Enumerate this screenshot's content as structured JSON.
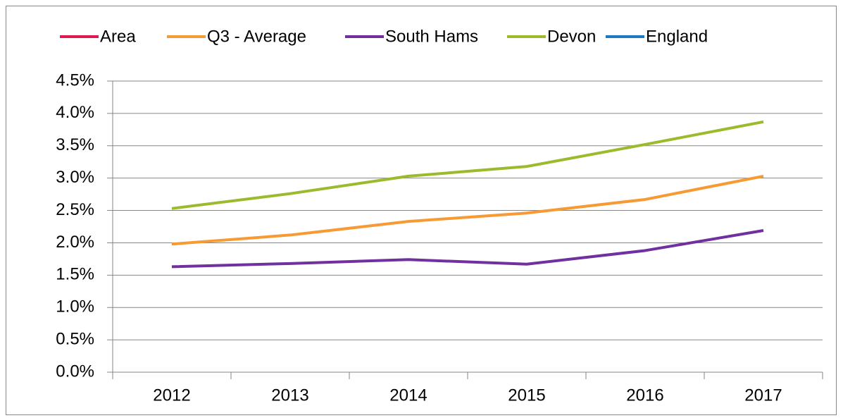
{
  "chart_data": {
    "type": "line",
    "categories": [
      "2012",
      "2013",
      "2014",
      "2015",
      "2016",
      "2017"
    ],
    "series": [
      {
        "name": "Area",
        "color": "#e0194f",
        "values": [
          null,
          null,
          null,
          null,
          null,
          null
        ]
      },
      {
        "name": "Q3 - Average",
        "color": "#f79a33",
        "values": [
          1.98,
          2.12,
          2.33,
          2.46,
          2.67,
          3.03
        ]
      },
      {
        "name": "South Hams",
        "color": "#7030a0",
        "values": [
          1.63,
          1.68,
          1.74,
          1.67,
          1.88,
          2.19
        ]
      },
      {
        "name": "Devon",
        "color": "#9bbb2c",
        "values": [
          2.53,
          2.76,
          3.03,
          3.18,
          3.52,
          3.87
        ]
      },
      {
        "name": "England",
        "color": "#1f77c8",
        "values": [
          null,
          null,
          null,
          null,
          null,
          null
        ]
      }
    ],
    "ylim": [
      0,
      4.5
    ],
    "yticks": [
      {
        "value": 0,
        "label": "0.0%"
      },
      {
        "value": 0.5,
        "label": "0.5%"
      },
      {
        "value": 1,
        "label": "1.0%"
      },
      {
        "value": 1.5,
        "label": "1.5%"
      },
      {
        "value": 2,
        "label": "2.0%"
      },
      {
        "value": 2.5,
        "label": "2.5%"
      },
      {
        "value": 3,
        "label": "3.0%"
      },
      {
        "value": 3.5,
        "label": "3.5%"
      },
      {
        "value": 4,
        "label": "4.0%"
      },
      {
        "value": 4.5,
        "label": "4.5%"
      }
    ],
    "grid": true,
    "legend": "top"
  }
}
